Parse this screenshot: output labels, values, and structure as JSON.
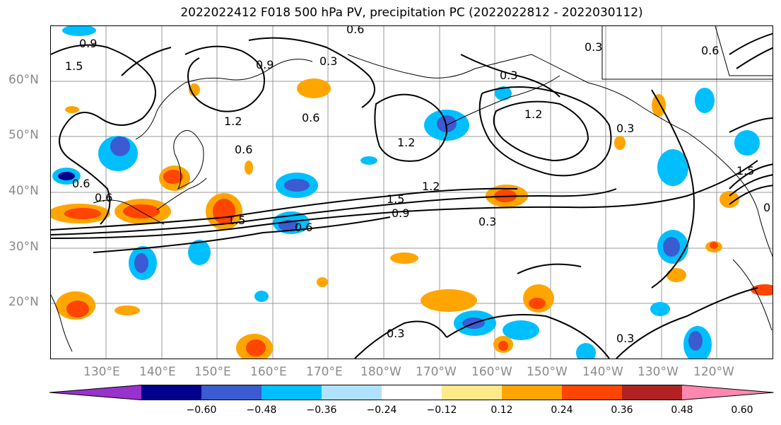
{
  "title": "2022022412 F018 500 hPa PV, precipitation PC (2022022812 - 2022030112)",
  "lat_labels": [
    "60°N",
    "50°N",
    "40°N",
    "30°N",
    "20°N"
  ],
  "lon_labels": [
    "130°E",
    "140°E",
    "150°E",
    "160°E",
    "170°E",
    "180°W",
    "170°W",
    "160°W",
    "150°W",
    "140°W",
    "130°W",
    "120°W"
  ],
  "contour_labels": [
    "0.9",
    "0.6",
    "1.5",
    "0.9",
    "0.3",
    "0.3",
    "0.3",
    "1.2",
    "0.6",
    "0.6",
    "1.2",
    "1.2",
    "1.5",
    "0.9",
    "0.3",
    "1.2",
    "1.5",
    "0.6",
    "0.6",
    "0.6",
    "0.3",
    "0.3",
    "0.3",
    "0.6",
    "1.5",
    "0"
  ],
  "colorbar": {
    "ticks": [
      "−0.60",
      "−0.48",
      "−0.36",
      "−0.24",
      "−0.12",
      "0.12",
      "0.24",
      "0.36",
      "0.48",
      "0.60"
    ],
    "colors": [
      "#9932cc",
      "#00008b",
      "#3a5bd1",
      "#00bfff",
      "#b0e2ff",
      "#ffffff",
      "#ffe98a",
      "#ffa500",
      "#ff4500",
      "#b22222",
      "#ff88b0"
    ]
  }
}
